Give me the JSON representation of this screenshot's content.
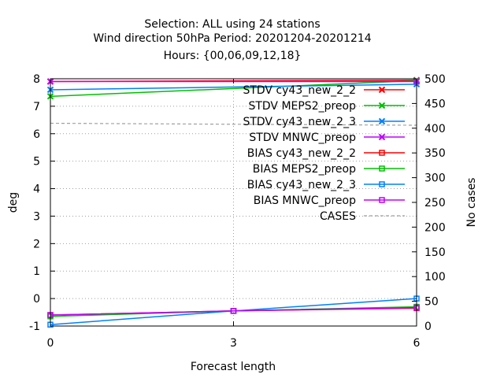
{
  "chart_data": {
    "type": "line",
    "title_lines": [
      "Selection: ALL using    24 stations",
      "Wind direction 50hPa   Period: 20201204-20201214",
      "Hours: {00,06,09,12,18}"
    ],
    "xlabel": "Forecast length",
    "ylabel": "deg",
    "y2label": "No cases",
    "x": [
      0,
      3,
      6
    ],
    "xlim": [
      0,
      6
    ],
    "ylim": [
      -1,
      8
    ],
    "y2lim": [
      0,
      500
    ],
    "xticks": [
      "0",
      "3",
      "6"
    ],
    "yticks": [
      "-1",
      "0",
      "1",
      "2",
      "3",
      "4",
      "5",
      "6",
      "7",
      "8"
    ],
    "y2ticks": [
      "0",
      "50",
      "100",
      "150",
      "200",
      "250",
      "300",
      "350",
      "400",
      "450",
      "500"
    ],
    "grid": true,
    "legend_position": "top-right",
    "series": [
      {
        "name": "STDV cy43_new_2_2",
        "axis": "y",
        "marker": "x",
        "color": "#ff0000",
        "x": [
          0,
          6
        ],
        "values": [
          7.9,
          7.95
        ]
      },
      {
        "name": "STDV MEPS2_preop",
        "axis": "y",
        "marker": "x",
        "color": "#00c000",
        "x": [
          0,
          6
        ],
        "values": [
          7.36,
          7.93
        ]
      },
      {
        "name": "STDV cy43_new_2_3",
        "axis": "y",
        "marker": "x",
        "color": "#0080ff",
        "x": [
          0,
          6
        ],
        "values": [
          7.6,
          7.8
        ]
      },
      {
        "name": "STDV MNWC_preop",
        "axis": "y",
        "marker": "x",
        "color": "#c000ff",
        "x": [
          0,
          6
        ],
        "values": [
          7.9,
          7.9
        ]
      },
      {
        "name": "BIAS cy43_new_2_2",
        "axis": "y",
        "marker": "square",
        "color": "#ff0000",
        "x": [
          0,
          3,
          6
        ],
        "values": [
          -0.6,
          -0.45,
          -0.35
        ]
      },
      {
        "name": "BIAS MEPS2_preop",
        "axis": "y",
        "marker": "square",
        "color": "#00c000",
        "x": [
          0,
          3,
          6
        ],
        "values": [
          -0.65,
          -0.45,
          -0.3
        ]
      },
      {
        "name": "BIAS cy43_new_2_3",
        "axis": "y",
        "marker": "square",
        "color": "#0080ff",
        "x": [
          0,
          3,
          6
        ],
        "values": [
          -0.95,
          -0.45,
          0.0
        ]
      },
      {
        "name": "BIAS MNWC_preop",
        "axis": "y",
        "marker": "square",
        "color": "#c000ff",
        "x": [
          0,
          3,
          6
        ],
        "values": [
          -0.6,
          -0.45,
          -0.33
        ]
      },
      {
        "name": "CASES",
        "axis": "y2",
        "marker": "none",
        "dashed": true,
        "color": "#a0a0a0",
        "x": [
          0,
          3,
          6
        ],
        "values": [
          410,
          408,
          406
        ]
      }
    ]
  }
}
